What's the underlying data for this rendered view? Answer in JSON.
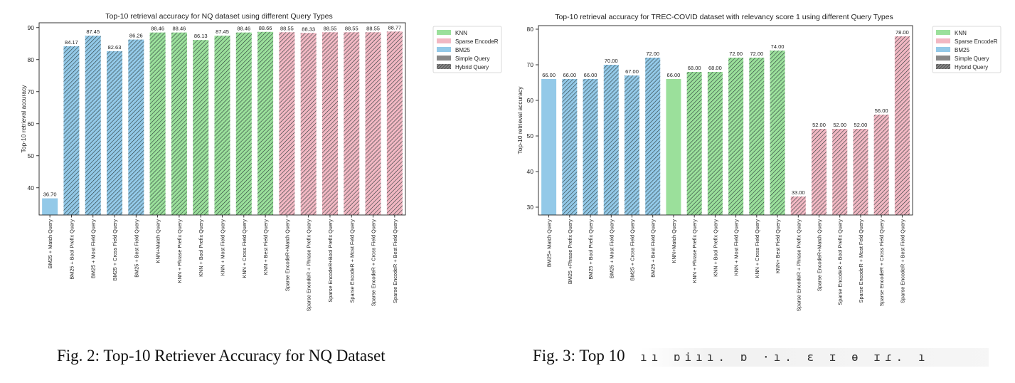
{
  "colors": {
    "KNN": "#9be09b",
    "Sparse EncodeR": "#f2b8c3",
    "BM25": "#93c9e8",
    "Simple Query": "#888888",
    "hatch": "#2b3a3a"
  },
  "chart_data": [
    {
      "type": "bar",
      "title": "Top-10 retrieval accuracy for NQ dataset using different Query Types",
      "xlabel": "",
      "ylabel": "Top-10 retrieval accuracy",
      "ylim": [
        31.5,
        91.5
      ],
      "yticks": [
        40,
        50,
        60,
        70,
        80,
        90
      ],
      "grid": false,
      "legend_position": "right, outside plot",
      "categories": [
        "BM25 + Match Query",
        "BM25 + Bool Prefix Query",
        "BM25 + Most Field Query",
        "BM25 + Cross Field Query",
        "BM25 + Best Field Query",
        "KNN+Match Query",
        "KNN + Phrase Prefix Query",
        "KNN + Bool Prefix Query",
        "KNN + Most  Field Query",
        "KNN  + Cross Field Query",
        "KNN  +  Best Field Query",
        "Sparse EncodeR+Match Query",
        "Sparse EncodeR + Phrase Prefix Query",
        "Sparse EncodeR+Bool Prefix Query",
        "Sparse EncodeR + Most  Feld Query",
        "Sparse EncodeR  + Cross Field Query",
        "Sparse EncodeR  + Best Field Query"
      ],
      "values": [
        36.7,
        84.17,
        87.45,
        82.63,
        86.26,
        88.46,
        88.46,
        86.13,
        87.45,
        88.46,
        88.66,
        88.55,
        88.33,
        88.55,
        88.55,
        88.55,
        88.77
      ],
      "value_labels": [
        "36.70",
        "84.17",
        "87.45",
        "82.63",
        "86.26",
        "88.46",
        "88.46",
        "86.13",
        "87.45",
        "88.46",
        "88.66",
        "88.55",
        "88.33",
        "88.55",
        "88.55",
        "88.55",
        "88.77"
      ],
      "retriever": [
        "BM25",
        "BM25",
        "BM25",
        "BM25",
        "BM25",
        "KNN",
        "KNN",
        "KNN",
        "KNN",
        "KNN",
        "KNN",
        "Sparse EncodeR",
        "Sparse EncodeR",
        "Sparse EncodeR",
        "Sparse EncodeR",
        "Sparse EncodeR",
        "Sparse EncodeR"
      ],
      "query_type": [
        "Simple Query",
        "Hybrid Query",
        "Hybrid Query",
        "Hybrid Query",
        "Hybrid Query",
        "Hybrid Query",
        "Hybrid Query",
        "Hybrid Query",
        "Hybrid Query",
        "Hybrid Query",
        "Hybrid Query",
        "Hybrid Query",
        "Hybrid Query",
        "Hybrid Query",
        "Hybrid Query",
        "Hybrid Query",
        "Hybrid Query"
      ],
      "legend": [
        "KNN",
        "Sparse EncodeR",
        "BM25",
        "Simple Query",
        "Hybrid Query"
      ]
    },
    {
      "type": "bar",
      "title": "Top-10 retrieval accuracy for TREC-COVID dataset with relevancy score 1 using different Query Types",
      "xlabel": "",
      "ylabel": "Top-10 retrieval accuracy",
      "ylim": [
        27.8,
        81
      ],
      "yticks": [
        30,
        40,
        50,
        60,
        70,
        80
      ],
      "grid": false,
      "legend_position": "right, outside plot",
      "categories": [
        "BM25+ Match Query",
        "BM25 +Phrase Prefix Query",
        "BM25 + Bool Prefix Query",
        "BM25 + Most Field Query",
        "BM25 + Cross Field Query",
        "BM25 + Best Field Query",
        "KNN+Match Query",
        "KNN + Phrase Prefix Query",
        "KNN + Bool Prefix Query",
        "KNN + Most  Field Query",
        "KNN + Cross Field Query",
        "KNN+ Best Field Query",
        "Sparse EncodeR + Phrase Prefix Query",
        "Sparse EncodeR+Match Query",
        "Sparse EncodeR + Bool Prefix Query",
        "Sparse EncodeR + Most  Feld Query",
        "Sparse EncodeR  + Cross Field Query",
        "Sparse EncodeR  + Best Field Query"
      ],
      "values": [
        66,
        66,
        66,
        70,
        67,
        72,
        66,
        68,
        68,
        72,
        72,
        74,
        33,
        52,
        52,
        52,
        56,
        78
      ],
      "value_labels": [
        "66.00",
        "66.00",
        "66.00",
        "70.00",
        "67.00",
        "72.00",
        "66.00",
        "68.00",
        "68.00",
        "72.00",
        "72.00",
        "74.00",
        "33.00",
        "52.00",
        "52.00",
        "52.00",
        "56.00",
        "78.00"
      ],
      "retriever": [
        "BM25",
        "BM25",
        "BM25",
        "BM25",
        "BM25",
        "BM25",
        "KNN",
        "KNN",
        "KNN",
        "KNN",
        "KNN",
        "KNN",
        "Sparse EncodeR",
        "Sparse EncodeR",
        "Sparse EncodeR",
        "Sparse EncodeR",
        "Sparse EncodeR",
        "Sparse EncodeR"
      ],
      "query_type": [
        "Simple Query",
        "Hybrid Query",
        "Hybrid Query",
        "Hybrid Query",
        "Hybrid Query",
        "Hybrid Query",
        "Simple Query",
        "Hybrid Query",
        "Hybrid Query",
        "Hybrid Query",
        "Hybrid Query",
        "Hybrid Query",
        "Hybrid Query",
        "Hybrid Query",
        "Hybrid Query",
        "Hybrid Query",
        "Hybrid Query",
        "Hybrid Query"
      ],
      "legend": [
        "KNN",
        "Sparse EncodeR",
        "BM25",
        "Simple Query",
        "Hybrid Query"
      ]
    }
  ],
  "captions": {
    "fig2": "Fig. 2: Top-10 Retriever Accuracy for NQ Dataset",
    "fig3_visible": "Fig. 3: Top 10",
    "fig3_smudge": "ıı ɒiıı. ɒ ·ı. ɛ ɪ ɵ ɪɾ. ı"
  }
}
